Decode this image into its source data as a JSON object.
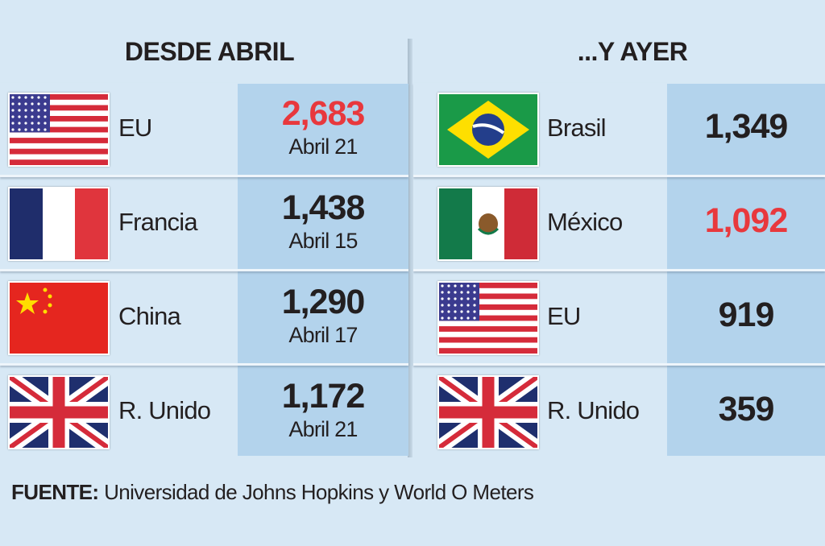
{
  "left": {
    "title": "DESDE ABRIL",
    "rows": [
      {
        "country": "EU",
        "value": "2,683",
        "date": "Abril 21",
        "color": "#e8383d"
      },
      {
        "country": "Francia",
        "value": "1,438",
        "date": "Abril 15"
      },
      {
        "country": "China",
        "value": "1,290",
        "date": "Abril 17"
      },
      {
        "country": "R. Unido",
        "value": "1,172",
        "date": "Abril 21"
      }
    ]
  },
  "right": {
    "title": "...Y AYER",
    "rows": [
      {
        "country": "Brasil",
        "value": "1,349"
      },
      {
        "country": "México",
        "value": "1,092",
        "color": "#e8383d"
      },
      {
        "country": "EU",
        "value": "919"
      },
      {
        "country": "R. Unido",
        "value": "359"
      }
    ]
  },
  "footer": {
    "label": "FUENTE:",
    "text": "Universidad de Johns Hopkins y World O Meters"
  }
}
